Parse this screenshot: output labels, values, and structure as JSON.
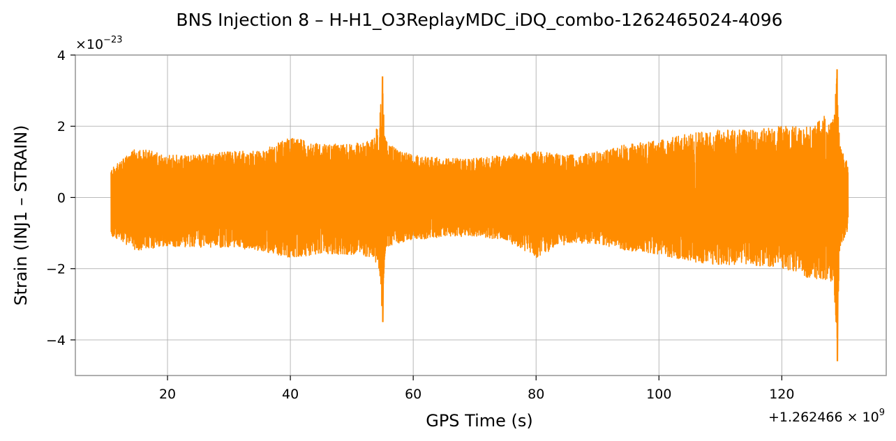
{
  "chart_data": {
    "type": "line",
    "title": "BNS Injection 8 – H-H1_O3ReplayMDC_iDQ_combo-1262465024-4096",
    "xlabel": "GPS Time (s)",
    "ylabel": "Strain (INJ1 – STRAIN)",
    "x_offset_text": "+1.262466 × 10",
    "x_offset_exponent": "9",
    "y_scale_text": "×10",
    "y_scale_exponent": "−23",
    "xlim": [
      5,
      137
    ],
    "ylim": [
      -5,
      4
    ],
    "xticks": [
      20,
      40,
      60,
      80,
      100,
      120
    ],
    "xtick_labels": [
      "20",
      "40",
      "60",
      "80",
      "100",
      "120"
    ],
    "yticks": [
      -4,
      -2,
      0,
      2,
      4
    ],
    "ytick_labels": [
      "−4",
      "−2",
      "0",
      "2",
      "4"
    ],
    "grid": true,
    "color": "#ff8c00",
    "series": [
      {
        "x_start": 10.8,
        "x_end": 130.8,
        "envelope": {
          "x": [
            10.8,
            15,
            20,
            25,
            30,
            35,
            40,
            45,
            50,
            53,
            54.5,
            55.0,
            55.3,
            55.6,
            57,
            60,
            65,
            70,
            75,
            80,
            85,
            90,
            95,
            100,
            105,
            110,
            115,
            120,
            125,
            127,
            128.5,
            129.0,
            129.3,
            129.8,
            130.8
          ],
          "upper": [
            0.8,
            1.4,
            1.2,
            1.2,
            1.3,
            1.3,
            1.7,
            1.5,
            1.5,
            1.6,
            2.1,
            3.4,
            2.0,
            1.6,
            1.4,
            1.2,
            1.1,
            1.1,
            1.2,
            1.3,
            1.2,
            1.3,
            1.5,
            1.6,
            1.8,
            1.9,
            1.9,
            2.0,
            2.0,
            2.3,
            2.3,
            3.6,
            2.1,
            1.3,
            1.0
          ],
          "lower": [
            -1.1,
            -1.5,
            -1.4,
            -1.4,
            -1.4,
            -1.5,
            -1.7,
            -1.6,
            -1.6,
            -1.7,
            -2.0,
            -3.5,
            -2.1,
            -1.4,
            -1.3,
            -1.2,
            -1.1,
            -1.1,
            -1.2,
            -1.7,
            -1.3,
            -1.3,
            -1.5,
            -1.6,
            -1.8,
            -1.9,
            -1.9,
            -2.0,
            -2.3,
            -2.3,
            -2.4,
            -4.6,
            -2.2,
            -1.3,
            -0.9
          ]
        }
      }
    ]
  }
}
